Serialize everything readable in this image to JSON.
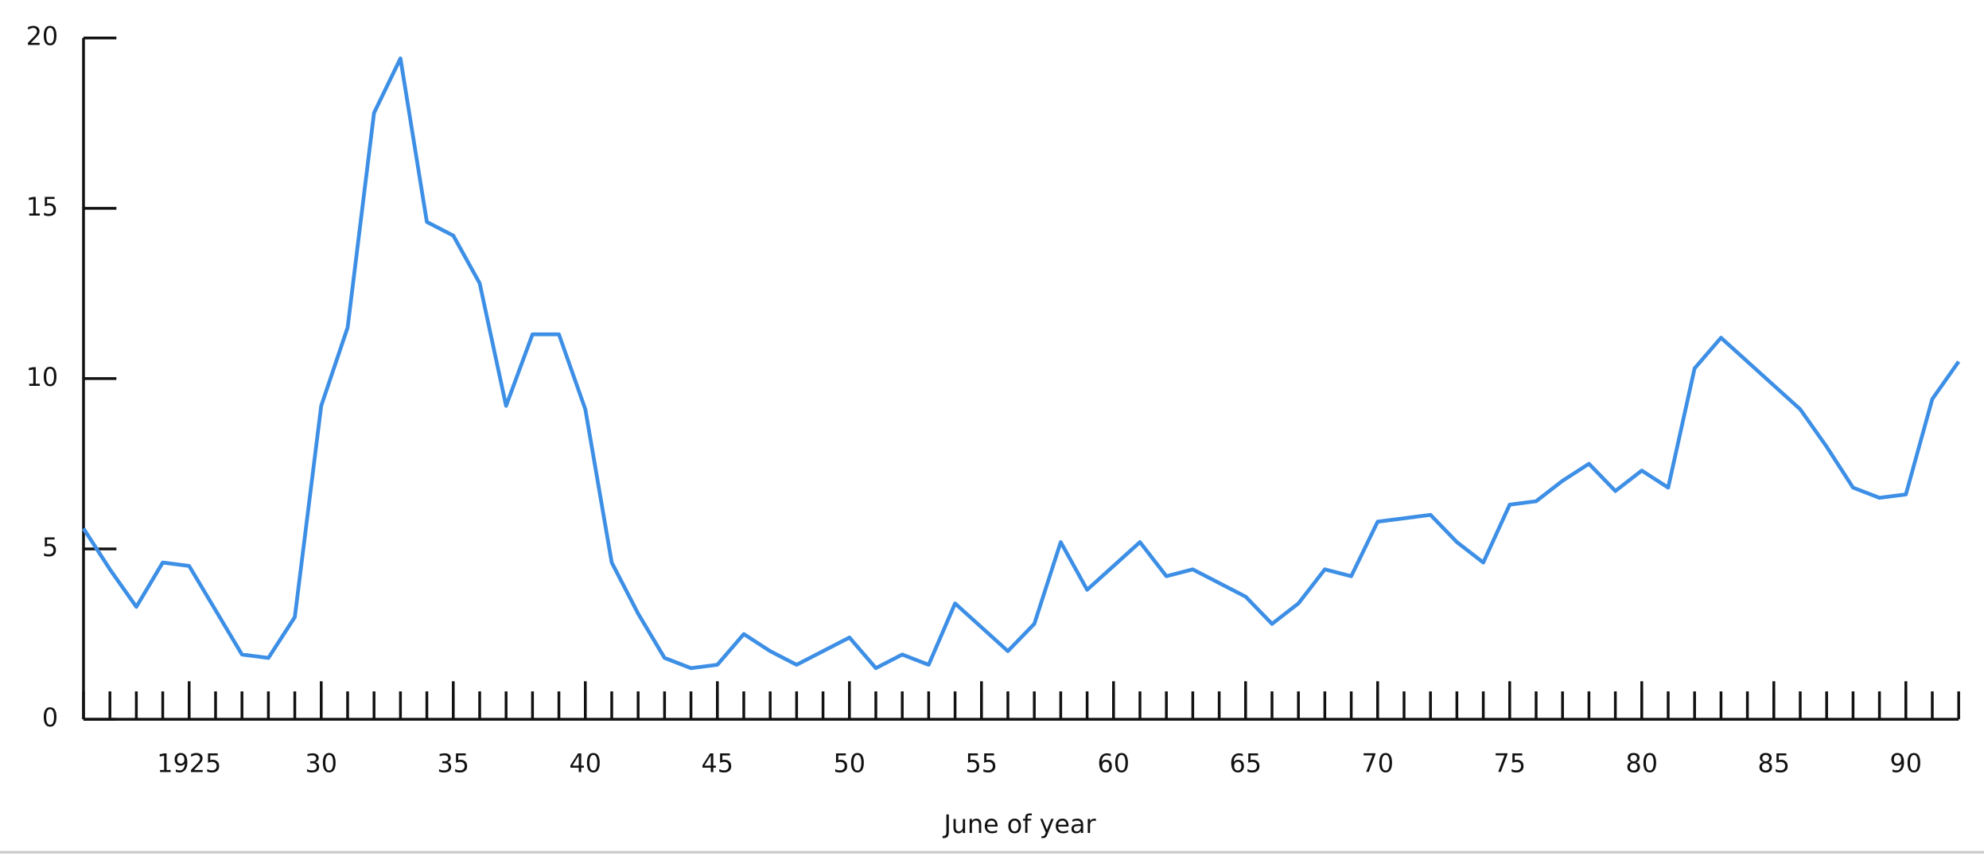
{
  "chart_data": {
    "type": "line",
    "x_label": "June of year",
    "x": [
      1921,
      1922,
      1923,
      1924,
      1925,
      1926,
      1927,
      1928,
      1929,
      1930,
      1931,
      1932,
      1933,
      1934,
      1935,
      1936,
      1937,
      1938,
      1939,
      1940,
      1941,
      1942,
      1943,
      1944,
      1945,
      1946,
      1947,
      1948,
      1949,
      1950,
      1951,
      1952,
      1953,
      1954,
      1955,
      1956,
      1957,
      1958,
      1959,
      1960,
      1961,
      1962,
      1963,
      1964,
      1965,
      1966,
      1967,
      1968,
      1969,
      1970,
      1971,
      1972,
      1973,
      1974,
      1975,
      1976,
      1977,
      1978,
      1979,
      1980,
      1981,
      1982,
      1983,
      1984,
      1985,
      1986,
      1987,
      1988,
      1989,
      1990,
      1991,
      1992
    ],
    "series": [
      {
        "color": "#3d8fe6",
        "values": [
          5.6,
          4.4,
          3.3,
          4.6,
          4.5,
          3.2,
          1.9,
          1.8,
          3.0,
          9.2,
          11.5,
          17.8,
          19.4,
          14.6,
          14.2,
          12.8,
          9.2,
          11.3,
          11.3,
          9.1,
          4.6,
          3.1,
          1.8,
          1.5,
          1.6,
          2.5,
          2.0,
          1.6,
          2.0,
          2.4,
          1.5,
          1.9,
          1.6,
          3.4,
          2.7,
          2.0,
          2.8,
          5.2,
          3.8,
          4.5,
          5.2,
          4.2,
          4.4,
          4.0,
          3.6,
          2.8,
          3.4,
          4.4,
          4.2,
          5.8,
          5.9,
          6.0,
          5.2,
          4.6,
          6.3,
          6.4,
          7.0,
          7.5,
          6.7,
          7.3,
          6.8,
          10.3,
          11.2,
          10.5,
          9.8,
          9.1,
          8.0,
          6.8,
          6.5,
          6.6,
          9.4,
          10.5
        ]
      }
    ],
    "xlim": [
      1921,
      1992
    ],
    "xticks": [
      1925,
      {
        "value": 1930,
        "label": "30"
      },
      {
        "value": 1935,
        "label": "35"
      },
      {
        "value": 1940,
        "label": "40"
      },
      {
        "value": 1945,
        "label": "45"
      },
      {
        "value": 1950,
        "label": "50"
      },
      {
        "value": 1955,
        "label": "55"
      },
      {
        "value": 1960,
        "label": "60"
      },
      {
        "value": 1965,
        "label": "65"
      },
      {
        "value": 1970,
        "label": "70"
      },
      {
        "value": 1975,
        "label": "75"
      },
      {
        "value": 1980,
        "label": "80"
      },
      {
        "value": 1985,
        "label": "85"
      },
      {
        "value": 1990,
        "label": "90"
      }
    ],
    "ylim": [
      0,
      20
    ],
    "yticks": [
      0,
      5,
      10,
      15,
      20
    ]
  }
}
